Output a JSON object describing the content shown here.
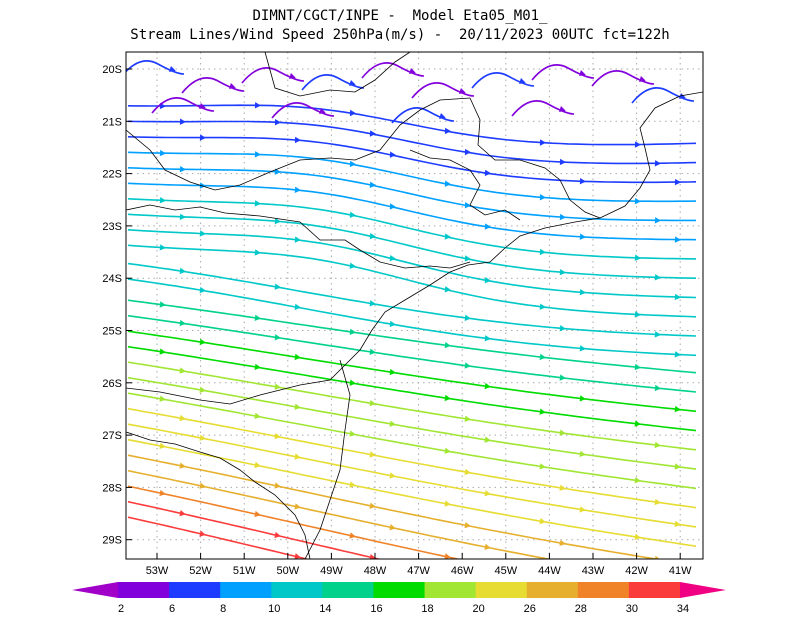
{
  "title": {
    "line1": "DIMNT/CGCT/INPE -  Model Eta05_M01_",
    "line2": "Stream Lines/Wind Speed 250hPa(m/s) -  20/11/2023 00UTC fct=122h"
  },
  "axes": {
    "lat_labels": [
      "20S",
      "21S",
      "22S",
      "23S",
      "24S",
      "25S",
      "26S",
      "27S",
      "28S",
      "29S"
    ],
    "lon_labels": [
      "53W",
      "52W",
      "51W",
      "50W",
      "49W",
      "48W",
      "47W",
      "46W",
      "45W",
      "44W",
      "43W",
      "42W",
      "41W"
    ]
  },
  "colorbar": {
    "levels": [
      "2",
      "6",
      "8",
      "10",
      "14",
      "16",
      "18",
      "20",
      "26",
      "28",
      "30",
      "34"
    ],
    "colors": [
      "#a000c8",
      "#8200dc",
      "#1e3cff",
      "#00a0ff",
      "#00c8c8",
      "#00d28c",
      "#00dc00",
      "#a0e632",
      "#e6dc32",
      "#e6af2d",
      "#f08228",
      "#fa3c3c",
      "#f00082"
    ]
  },
  "colors": {
    "coast": "#000000",
    "grid": "#aaaaaa",
    "background": "#ffffff"
  }
}
